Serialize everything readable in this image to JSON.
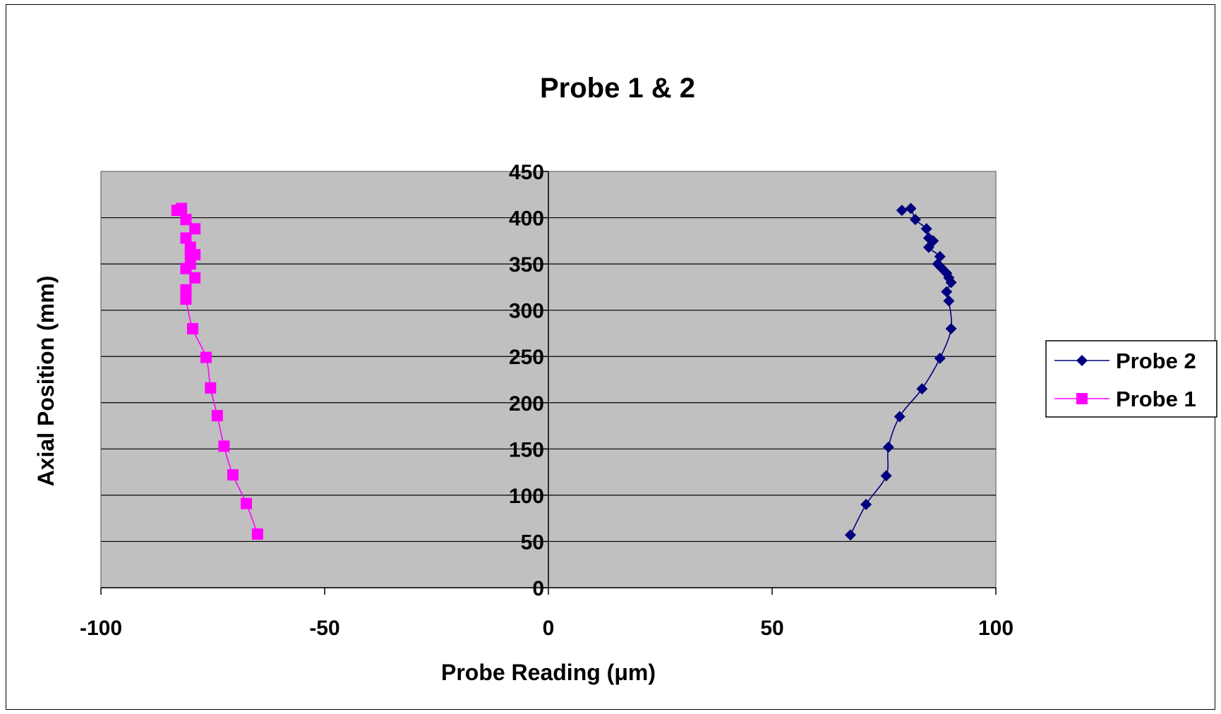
{
  "chart_data": {
    "type": "scatter",
    "title": "Probe 1 & 2",
    "xlabel": "Probe Reading (μm)",
    "ylabel": "Axial Position (mm)",
    "xlim": [
      -100,
      100
    ],
    "ylim": [
      0,
      450
    ],
    "x_ticks": [
      -100,
      -50,
      0,
      50,
      100
    ],
    "y_ticks": [
      0,
      50,
      100,
      150,
      200,
      250,
      300,
      350,
      400,
      450
    ],
    "grid": "horizontal",
    "legend_position": "right",
    "plot_background": "#c0c0c0",
    "series": [
      {
        "name": "Probe 2",
        "color": "#000080",
        "marker": "diamond",
        "x": [
          79,
          81,
          82,
          84.5,
          85,
          86,
          85,
          87.5,
          87,
          88,
          89,
          89.5,
          90,
          89,
          89.5,
          90,
          87.5,
          83.5,
          78.5,
          76,
          75.5,
          71,
          67.5
        ],
        "y": [
          408,
          410,
          398,
          388,
          378,
          375,
          368,
          358,
          350,
          345,
          340,
          335,
          330,
          320,
          310,
          280,
          248,
          215,
          185,
          152,
          121,
          90,
          57
        ]
      },
      {
        "name": "Probe 1",
        "color": "#ff00ff",
        "marker": "square",
        "x": [
          -83,
          -82,
          -81,
          -79,
          -81,
          -80,
          -80,
          -79,
          -80,
          -81,
          -79,
          -81,
          -81,
          -79.5,
          -76.5,
          -75.5,
          -74,
          -72.5,
          -70.5,
          -67.5,
          -65
        ],
        "y": [
          408,
          410,
          398,
          388,
          378,
          368,
          362,
          360,
          350,
          345,
          335,
          322,
          312,
          280,
          249,
          216,
          186,
          153,
          122,
          91,
          58
        ]
      }
    ]
  }
}
